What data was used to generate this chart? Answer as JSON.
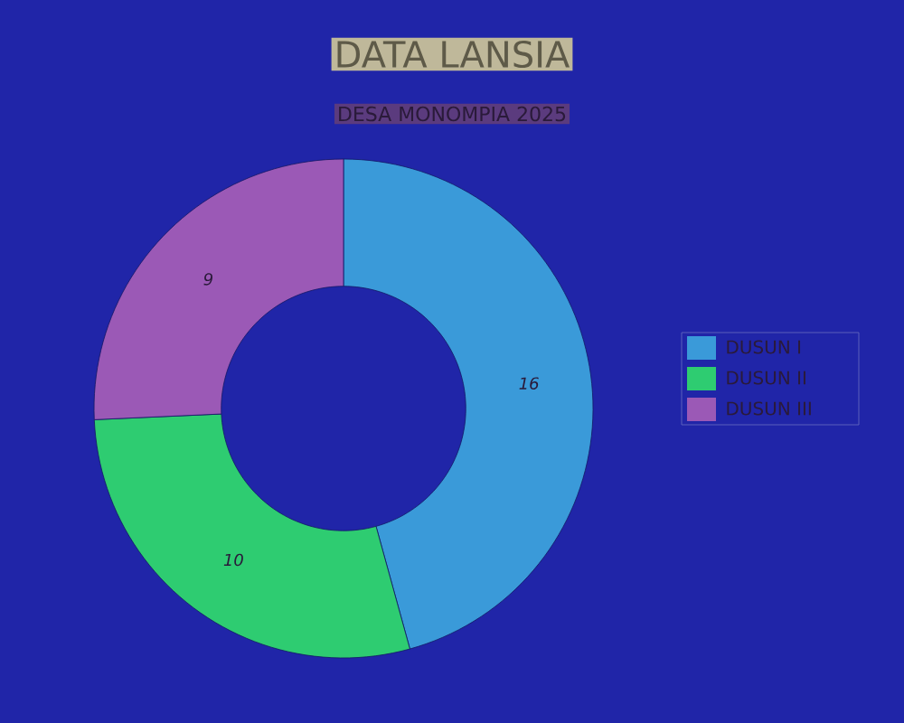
{
  "chart_data": {
    "type": "donut",
    "title": "DATA LANSIA",
    "subtitle": "DESA MONOMPIA 2025",
    "categories": [
      "DUSUN I",
      "DUSUN II",
      "DUSUN III"
    ],
    "values": [
      16,
      10,
      9
    ],
    "colors": [
      "#3a9ad9",
      "#2ecc71",
      "#9b59b6"
    ],
    "data_labels": true,
    "legend": "right"
  }
}
